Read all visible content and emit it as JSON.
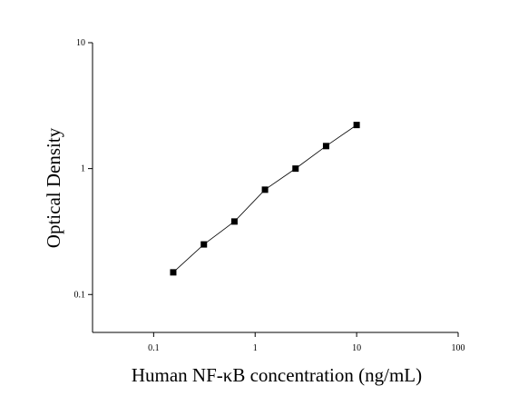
{
  "chart_data": {
    "type": "scatter",
    "x_label": "Human NF-κB concentration (ng/mL)",
    "y_label": "Optical Density",
    "x": [
      0.156,
      0.3125,
      0.625,
      1.25,
      2.5,
      5,
      10
    ],
    "values": [
      0.15,
      0.25,
      0.38,
      0.68,
      1.0,
      1.51,
      2.22
    ],
    "color": "#000000",
    "fit_line": true,
    "xscale": "log",
    "yscale": "log",
    "xlim": [
      0.025,
      100
    ],
    "ylim": [
      0.05,
      10
    ],
    "xticks": [
      0.1,
      1,
      10,
      100
    ],
    "yticks": [
      0.1,
      1,
      10
    ]
  }
}
